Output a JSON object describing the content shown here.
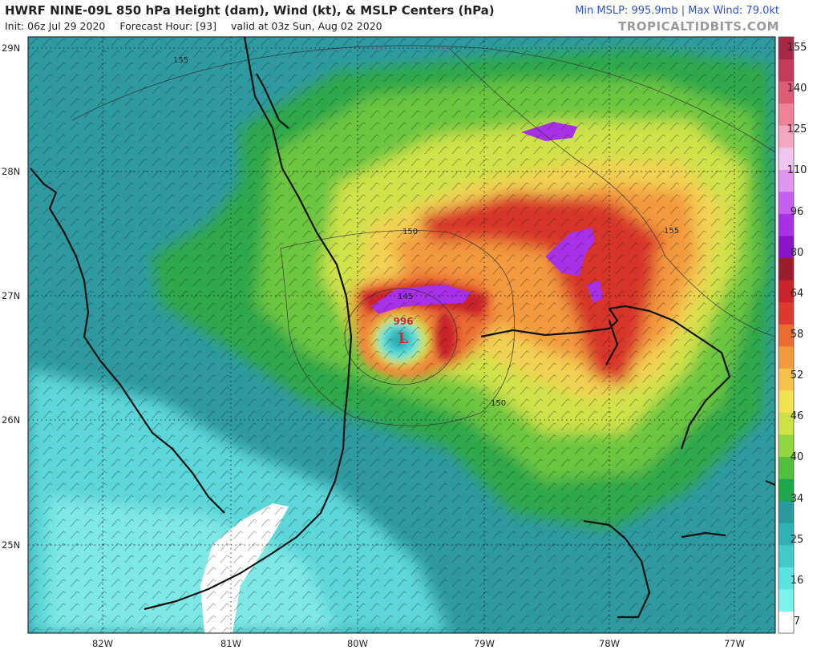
{
  "header": {
    "title": "HWRF NINE-09L 850 hPa Height (dam), Wind (kt), & MSLP Centers (hPa)",
    "init": "Init: 06z Jul 29 2020",
    "forecast_hour": "Forecast Hour: [93]",
    "valid": "valid at 03z Sun, Aug 02 2020",
    "stats": "Min MSLP: 995.9mb | Max Wind: 79.0kt",
    "brand": "TROPICALTIDBITS.COM"
  },
  "map": {
    "lat_labels": [
      "29N",
      "28N",
      "27N",
      "26N",
      "25N"
    ],
    "lon_labels": [
      "82W",
      "81W",
      "80W",
      "79W",
      "78W",
      "77W"
    ],
    "contour_labels": [
      "155",
      "150",
      "145",
      "150",
      "155"
    ],
    "low_center": {
      "pressure": "996",
      "symbol": "L"
    }
  },
  "colorbar": {
    "labels": [
      "155",
      "140",
      "125",
      "110",
      "96",
      "80",
      "64",
      "58",
      "52",
      "46",
      "40",
      "34",
      "25",
      "16",
      "7"
    ],
    "colors": [
      "#ffffff",
      "#7ef0ee",
      "#5ce2e0",
      "#42c9cc",
      "#2fb0b4",
      "#2b9a9e",
      "#1ea64a",
      "#52c03c",
      "#8fd640",
      "#cce246",
      "#f2e250",
      "#f6c24a",
      "#f29a3e",
      "#ea6a32",
      "#dc3a2c",
      "#c8242a",
      "#9a1e2e",
      "#8a12c8",
      "#a830e6",
      "#c65ef0",
      "#de96f2",
      "#f2c4f0",
      "#f6a6c0",
      "#ee8098",
      "#dc5c78",
      "#c43a5c",
      "#a82848"
    ]
  }
}
